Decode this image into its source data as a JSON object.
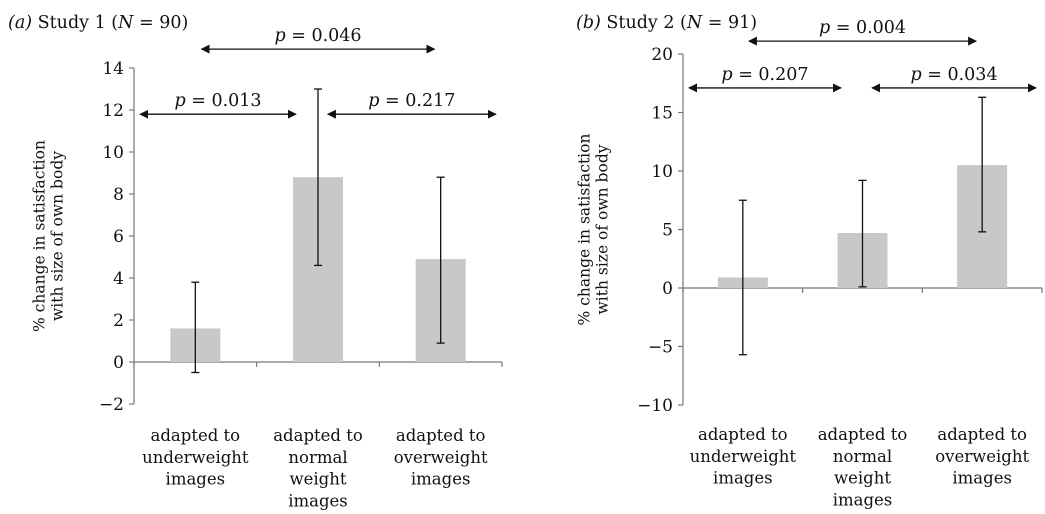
{
  "chart_data": [
    {
      "type": "bar",
      "panel_label": "(a)",
      "title": "Study 1 (N = 90)",
      "ylabel": "% change in satisfaction with size of own body",
      "ylim": [
        -2,
        14
      ],
      "yticks": [
        -2,
        0,
        2,
        4,
        6,
        8,
        10,
        12,
        14
      ],
      "categories": [
        "adapted to underweight images",
        "adapted to normal weight images",
        "adapted to overweight images"
      ],
      "values": [
        1.6,
        8.8,
        4.9
      ],
      "error_low": [
        -0.5,
        4.6,
        0.9
      ],
      "error_high": [
        3.8,
        13.0,
        8.8
      ],
      "comparisons": [
        {
          "from": 0,
          "to": 1,
          "label": "p = 0.013",
          "at": 11.8
        },
        {
          "from": 1,
          "to": 2,
          "label": "p = 0.217",
          "at": 11.8
        },
        {
          "from": 0,
          "to": 2,
          "label": "p = 0.046",
          "at": 14.9
        }
      ]
    },
    {
      "type": "bar",
      "panel_label": "(b)",
      "title": "Study 2 (N = 91)",
      "ylabel": "% change in satisfaction with size of own body",
      "ylim": [
        -10,
        20
      ],
      "yticks": [
        -10,
        -5,
        0,
        5,
        10,
        15,
        20
      ],
      "categories": [
        "adapted to underweight images",
        "adapted to normal weight images",
        "adapted to overweight images"
      ],
      "values": [
        0.9,
        4.7,
        10.5
      ],
      "error_low": [
        -5.7,
        0.1,
        4.8
      ],
      "error_high": [
        7.5,
        9.2,
        16.3
      ],
      "comparisons": [
        {
          "from": 0,
          "to": 1,
          "label": "p = 0.207",
          "at": 17.1
        },
        {
          "from": 1,
          "to": 2,
          "label": "p = 0.034",
          "at": 17.1
        },
        {
          "from": 0,
          "to": 2,
          "label": "p = 0.004",
          "at": 21.1
        }
      ]
    }
  ]
}
